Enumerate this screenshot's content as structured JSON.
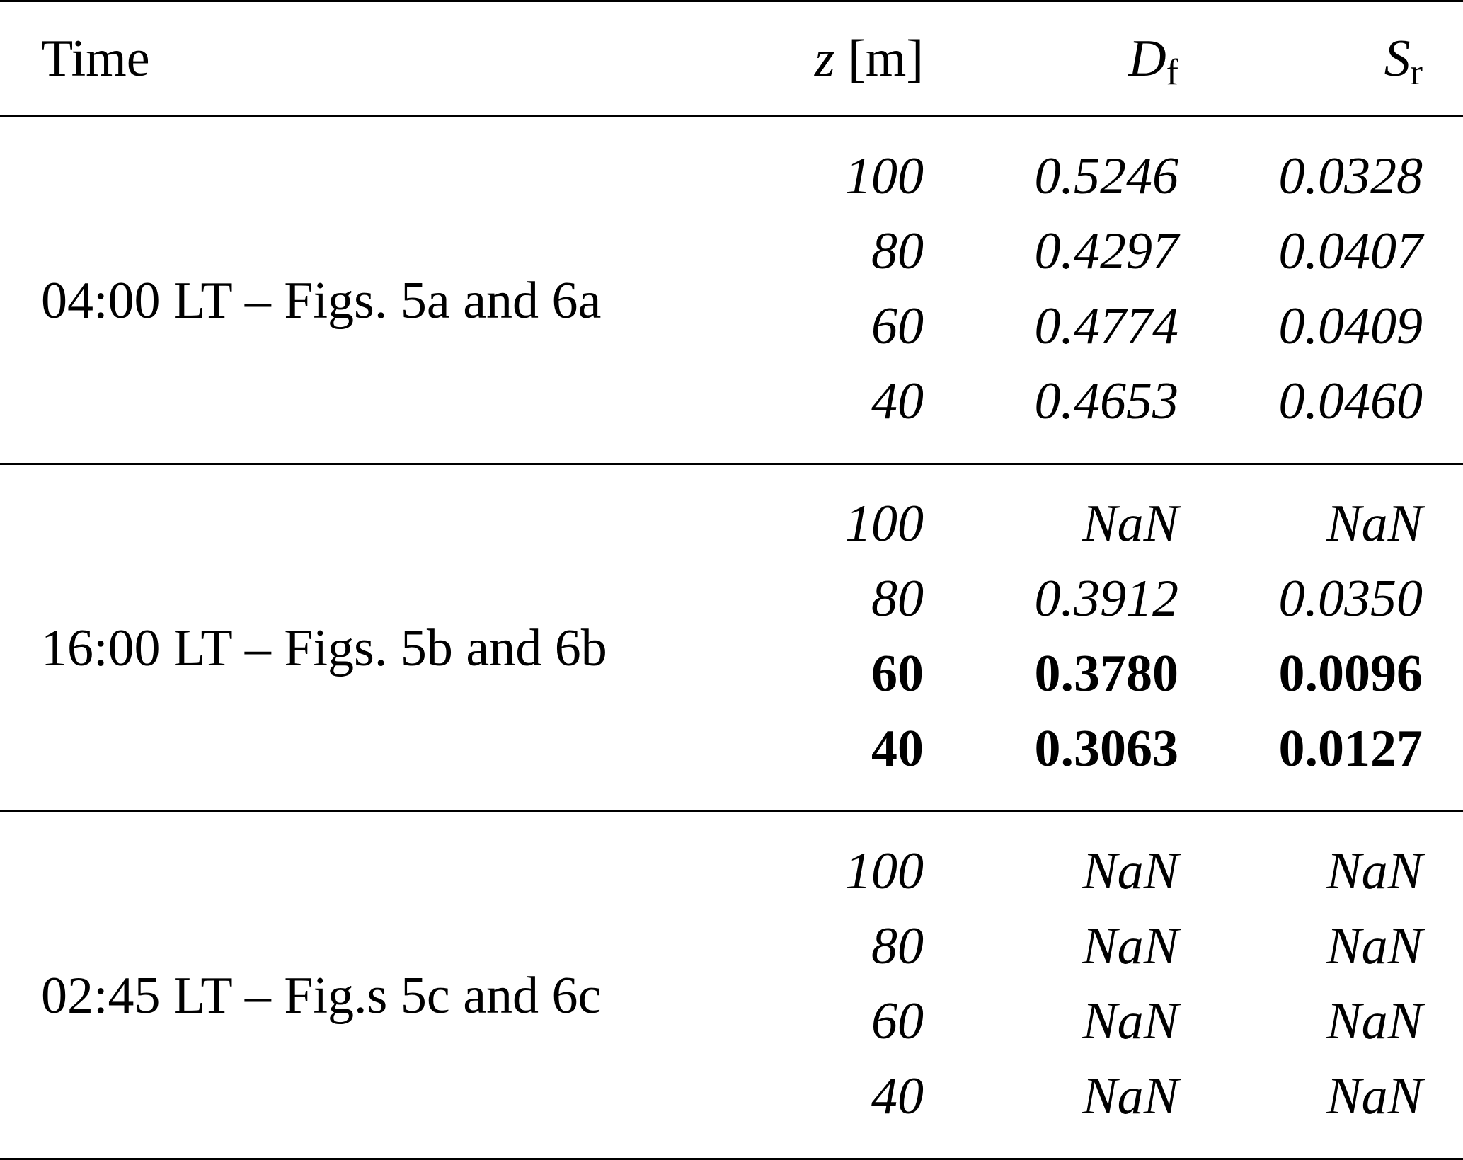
{
  "table": {
    "headers": {
      "time": "Time",
      "z_var": "z",
      "z_unit": " [m]",
      "df_var": "D",
      "df_sub": "f",
      "sr_var": "S",
      "sr_sub": "r"
    },
    "groups": [
      {
        "label": "04:00 LT – Figs. 5a and 6a",
        "rows": [
          {
            "z": "100",
            "df": "0.5246",
            "sr": "0.0328",
            "bold": false
          },
          {
            "z": "80",
            "df": "0.4297",
            "sr": "0.0407",
            "bold": false
          },
          {
            "z": "60",
            "df": "0.4774",
            "sr": "0.0409",
            "bold": false
          },
          {
            "z": "40",
            "df": "0.4653",
            "sr": "0.0460",
            "bold": false
          }
        ]
      },
      {
        "label": "16:00 LT – Figs. 5b and 6b",
        "rows": [
          {
            "z": "100",
            "df": "NaN",
            "sr": "NaN",
            "bold": false
          },
          {
            "z": "80",
            "df": "0.3912",
            "sr": "0.0350",
            "bold": false
          },
          {
            "z": "60",
            "df": "0.3780",
            "sr": "0.0096",
            "bold": true
          },
          {
            "z": "40",
            "df": "0.3063",
            "sr": "0.0127",
            "bold": true
          }
        ]
      },
      {
        "label": "02:45 LT – Fig.s 5c and 6c",
        "rows": [
          {
            "z": "100",
            "df": "NaN",
            "sr": "NaN",
            "bold": false
          },
          {
            "z": "80",
            "df": "NaN",
            "sr": "NaN",
            "bold": false
          },
          {
            "z": "60",
            "df": "NaN",
            "sr": "NaN",
            "bold": false
          },
          {
            "z": "40",
            "df": "NaN",
            "sr": "NaN",
            "bold": false
          }
        ]
      }
    ]
  }
}
